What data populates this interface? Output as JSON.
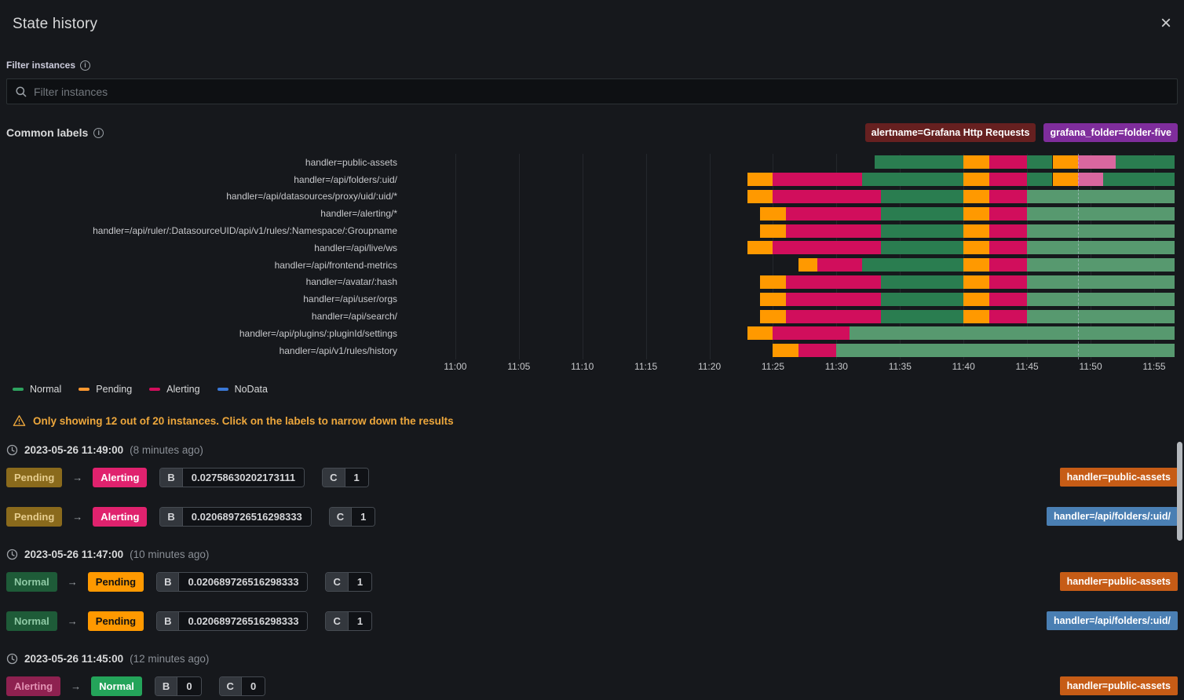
{
  "title": "State history",
  "close_label": "×",
  "filter": {
    "label": "Filter instances",
    "placeholder": "Filter instances"
  },
  "common_labels": {
    "label": "Common labels",
    "badges": [
      {
        "text": "alertname=Grafana Http Requests",
        "bg": "#662020"
      },
      {
        "text": "grafana_folder=folder-five",
        "bg": "#7f2d9c"
      }
    ]
  },
  "chart_data": {
    "type": "state-timeline",
    "x_axis": {
      "domain_minutes_after_1100": [
        -3.7,
        57.35
      ],
      "tick_minutes": [
        0,
        5,
        10,
        15,
        20,
        25,
        30,
        35,
        40,
        45,
        50,
        55
      ],
      "tick_labels": [
        "11:00",
        "11:05",
        "11:10",
        "11:15",
        "11:20",
        "11:25",
        "11:30",
        "11:35",
        "11:40",
        "11:45",
        "11:50",
        "11:55"
      ]
    },
    "annotation": {
      "minute": 49,
      "style": "dashed"
    },
    "state_colors": {
      "normal": "#2a7d50",
      "normal_light": "#57996f",
      "pending": "#ff9900",
      "alerting": "#d10e5c",
      "alerting_light": "#d9679f"
    },
    "legend": [
      {
        "label": "Normal",
        "color": "#2ea35f"
      },
      {
        "label": "Pending",
        "color": "#ff9830"
      },
      {
        "label": "Alerting",
        "color": "#d10e5c"
      },
      {
        "label": "NoData",
        "color": "#3a78d6"
      }
    ],
    "rows": [
      {
        "label": "handler=public-assets",
        "segments": [
          [
            33,
            40,
            "normal"
          ],
          [
            40,
            42,
            "pending"
          ],
          [
            42,
            45,
            "alerting"
          ],
          [
            45,
            47,
            "normal"
          ],
          [
            47,
            49,
            "pending"
          ],
          [
            49,
            52,
            "alerting_light"
          ],
          [
            52,
            56.6,
            "normal"
          ]
        ]
      },
      {
        "label": "handler=/api/folders/:uid/",
        "segments": [
          [
            23,
            25,
            "pending"
          ],
          [
            25,
            32,
            "alerting"
          ],
          [
            32,
            40,
            "normal"
          ],
          [
            40,
            42,
            "pending"
          ],
          [
            42,
            45,
            "alerting"
          ],
          [
            45,
            47,
            "normal"
          ],
          [
            47,
            49,
            "pending"
          ],
          [
            49,
            51,
            "alerting_light"
          ],
          [
            51,
            56.6,
            "normal"
          ]
        ]
      },
      {
        "label": "handler=/api/datasources/proxy/uid/:uid/*",
        "segments": [
          [
            23,
            25,
            "pending"
          ],
          [
            25,
            33.5,
            "alerting"
          ],
          [
            33.5,
            40,
            "normal"
          ],
          [
            40,
            42,
            "pending"
          ],
          [
            42,
            45,
            "alerting"
          ],
          [
            45,
            56.6,
            "normal_light"
          ]
        ]
      },
      {
        "label": "handler=/alerting/*",
        "segments": [
          [
            24,
            26,
            "pending"
          ],
          [
            26,
            33.5,
            "alerting"
          ],
          [
            33.5,
            40,
            "normal"
          ],
          [
            40,
            42,
            "pending"
          ],
          [
            42,
            45,
            "alerting"
          ],
          [
            45,
            56.6,
            "normal_light"
          ]
        ]
      },
      {
        "label": "handler=/api/ruler/:DatasourceUID/api/v1/rules/:Namespace/:Groupname",
        "segments": [
          [
            24,
            26,
            "pending"
          ],
          [
            26,
            33.5,
            "alerting"
          ],
          [
            33.5,
            40,
            "normal"
          ],
          [
            40,
            42,
            "pending"
          ],
          [
            42,
            45,
            "alerting"
          ],
          [
            45,
            56.6,
            "normal_light"
          ]
        ]
      },
      {
        "label": "handler=/api/live/ws",
        "segments": [
          [
            23,
            25,
            "pending"
          ],
          [
            25,
            33.5,
            "alerting"
          ],
          [
            33.5,
            40,
            "normal"
          ],
          [
            40,
            42,
            "pending"
          ],
          [
            42,
            45,
            "alerting"
          ],
          [
            45,
            56.6,
            "normal_light"
          ]
        ]
      },
      {
        "label": "handler=/api/frontend-metrics",
        "segments": [
          [
            27,
            28.5,
            "pending"
          ],
          [
            28.5,
            32,
            "alerting"
          ],
          [
            32,
            40,
            "normal"
          ],
          [
            40,
            42,
            "pending"
          ],
          [
            42,
            45,
            "alerting"
          ],
          [
            45,
            56.6,
            "normal_light"
          ]
        ]
      },
      {
        "label": "handler=/avatar/:hash",
        "segments": [
          [
            24,
            26,
            "pending"
          ],
          [
            26,
            33.5,
            "alerting"
          ],
          [
            33.5,
            40,
            "normal"
          ],
          [
            40,
            42,
            "pending"
          ],
          [
            42,
            45,
            "alerting"
          ],
          [
            45,
            56.6,
            "normal_light"
          ]
        ]
      },
      {
        "label": "handler=/api/user/orgs",
        "segments": [
          [
            24,
            26,
            "pending"
          ],
          [
            26,
            33.5,
            "alerting"
          ],
          [
            33.5,
            40,
            "normal"
          ],
          [
            40,
            42,
            "pending"
          ],
          [
            42,
            45,
            "alerting"
          ],
          [
            45,
            56.6,
            "normal_light"
          ]
        ]
      },
      {
        "label": "handler=/api/search/",
        "segments": [
          [
            24,
            26,
            "pending"
          ],
          [
            26,
            33.5,
            "alerting"
          ],
          [
            33.5,
            40,
            "normal"
          ],
          [
            40,
            42,
            "pending"
          ],
          [
            42,
            45,
            "alerting"
          ],
          [
            45,
            56.6,
            "normal_light"
          ]
        ]
      },
      {
        "label": "handler=/api/plugins/:pluginId/settings",
        "segments": [
          [
            23,
            25,
            "pending"
          ],
          [
            25,
            31,
            "alerting"
          ],
          [
            31,
            56.6,
            "normal_light"
          ]
        ]
      },
      {
        "label": "handler=/api/v1/rules/history",
        "segments": [
          [
            25,
            27,
            "pending"
          ],
          [
            27,
            30,
            "alerting"
          ],
          [
            30,
            56.6,
            "normal_light"
          ]
        ]
      }
    ]
  },
  "warning": {
    "text": "Only showing 12 out of 20 instances. Click on the labels to narrow down the results"
  },
  "state_styles": {
    "from": {
      "Pending": {
        "bg": "#8a6a1c",
        "fg": "#e6cd8e"
      },
      "Normal": {
        "bg": "#1e5b38",
        "fg": "#8ec9a4"
      },
      "Alerting": {
        "bg": "#8e2150",
        "fg": "#e393b4"
      }
    },
    "to": {
      "Alerting": {
        "bg": "#e0226e",
        "fg": "#ffffff"
      },
      "Pending": {
        "bg": "#ff9900",
        "fg": "#121212"
      },
      "Normal": {
        "bg": "#24a45a",
        "fg": "#ffffff"
      }
    }
  },
  "instance_colors": {
    "handler=public-assets": "#c65c16",
    "handler=/api/folders/:uid/": "#4a7fb3"
  },
  "events": [
    {
      "kind": "timestamp",
      "time": "2023-05-26 11:49:00",
      "ago": "(8 minutes ago)"
    },
    {
      "kind": "transition",
      "from": "Pending",
      "to": "Alerting",
      "values": [
        [
          "B",
          "0.02758630202173111"
        ],
        [
          "C",
          "1"
        ]
      ],
      "instance": "handler=public-assets"
    },
    {
      "kind": "transition",
      "from": "Pending",
      "to": "Alerting",
      "values": [
        [
          "B",
          "0.020689726516298333"
        ],
        [
          "C",
          "1"
        ]
      ],
      "instance": "handler=/api/folders/:uid/"
    },
    {
      "kind": "timestamp",
      "time": "2023-05-26 11:47:00",
      "ago": "(10 minutes ago)"
    },
    {
      "kind": "transition",
      "from": "Normal",
      "to": "Pending",
      "values": [
        [
          "B",
          "0.020689726516298333"
        ],
        [
          "C",
          "1"
        ]
      ],
      "instance": "handler=public-assets"
    },
    {
      "kind": "transition",
      "from": "Normal",
      "to": "Pending",
      "values": [
        [
          "B",
          "0.020689726516298333"
        ],
        [
          "C",
          "1"
        ]
      ],
      "instance": "handler=/api/folders/:uid/"
    },
    {
      "kind": "timestamp",
      "time": "2023-05-26 11:45:00",
      "ago": "(12 minutes ago)"
    },
    {
      "kind": "transition",
      "from": "Alerting",
      "to": "Normal",
      "values": [
        [
          "B",
          "0"
        ],
        [
          "C",
          "0"
        ]
      ],
      "instance": "handler=public-assets"
    }
  ]
}
